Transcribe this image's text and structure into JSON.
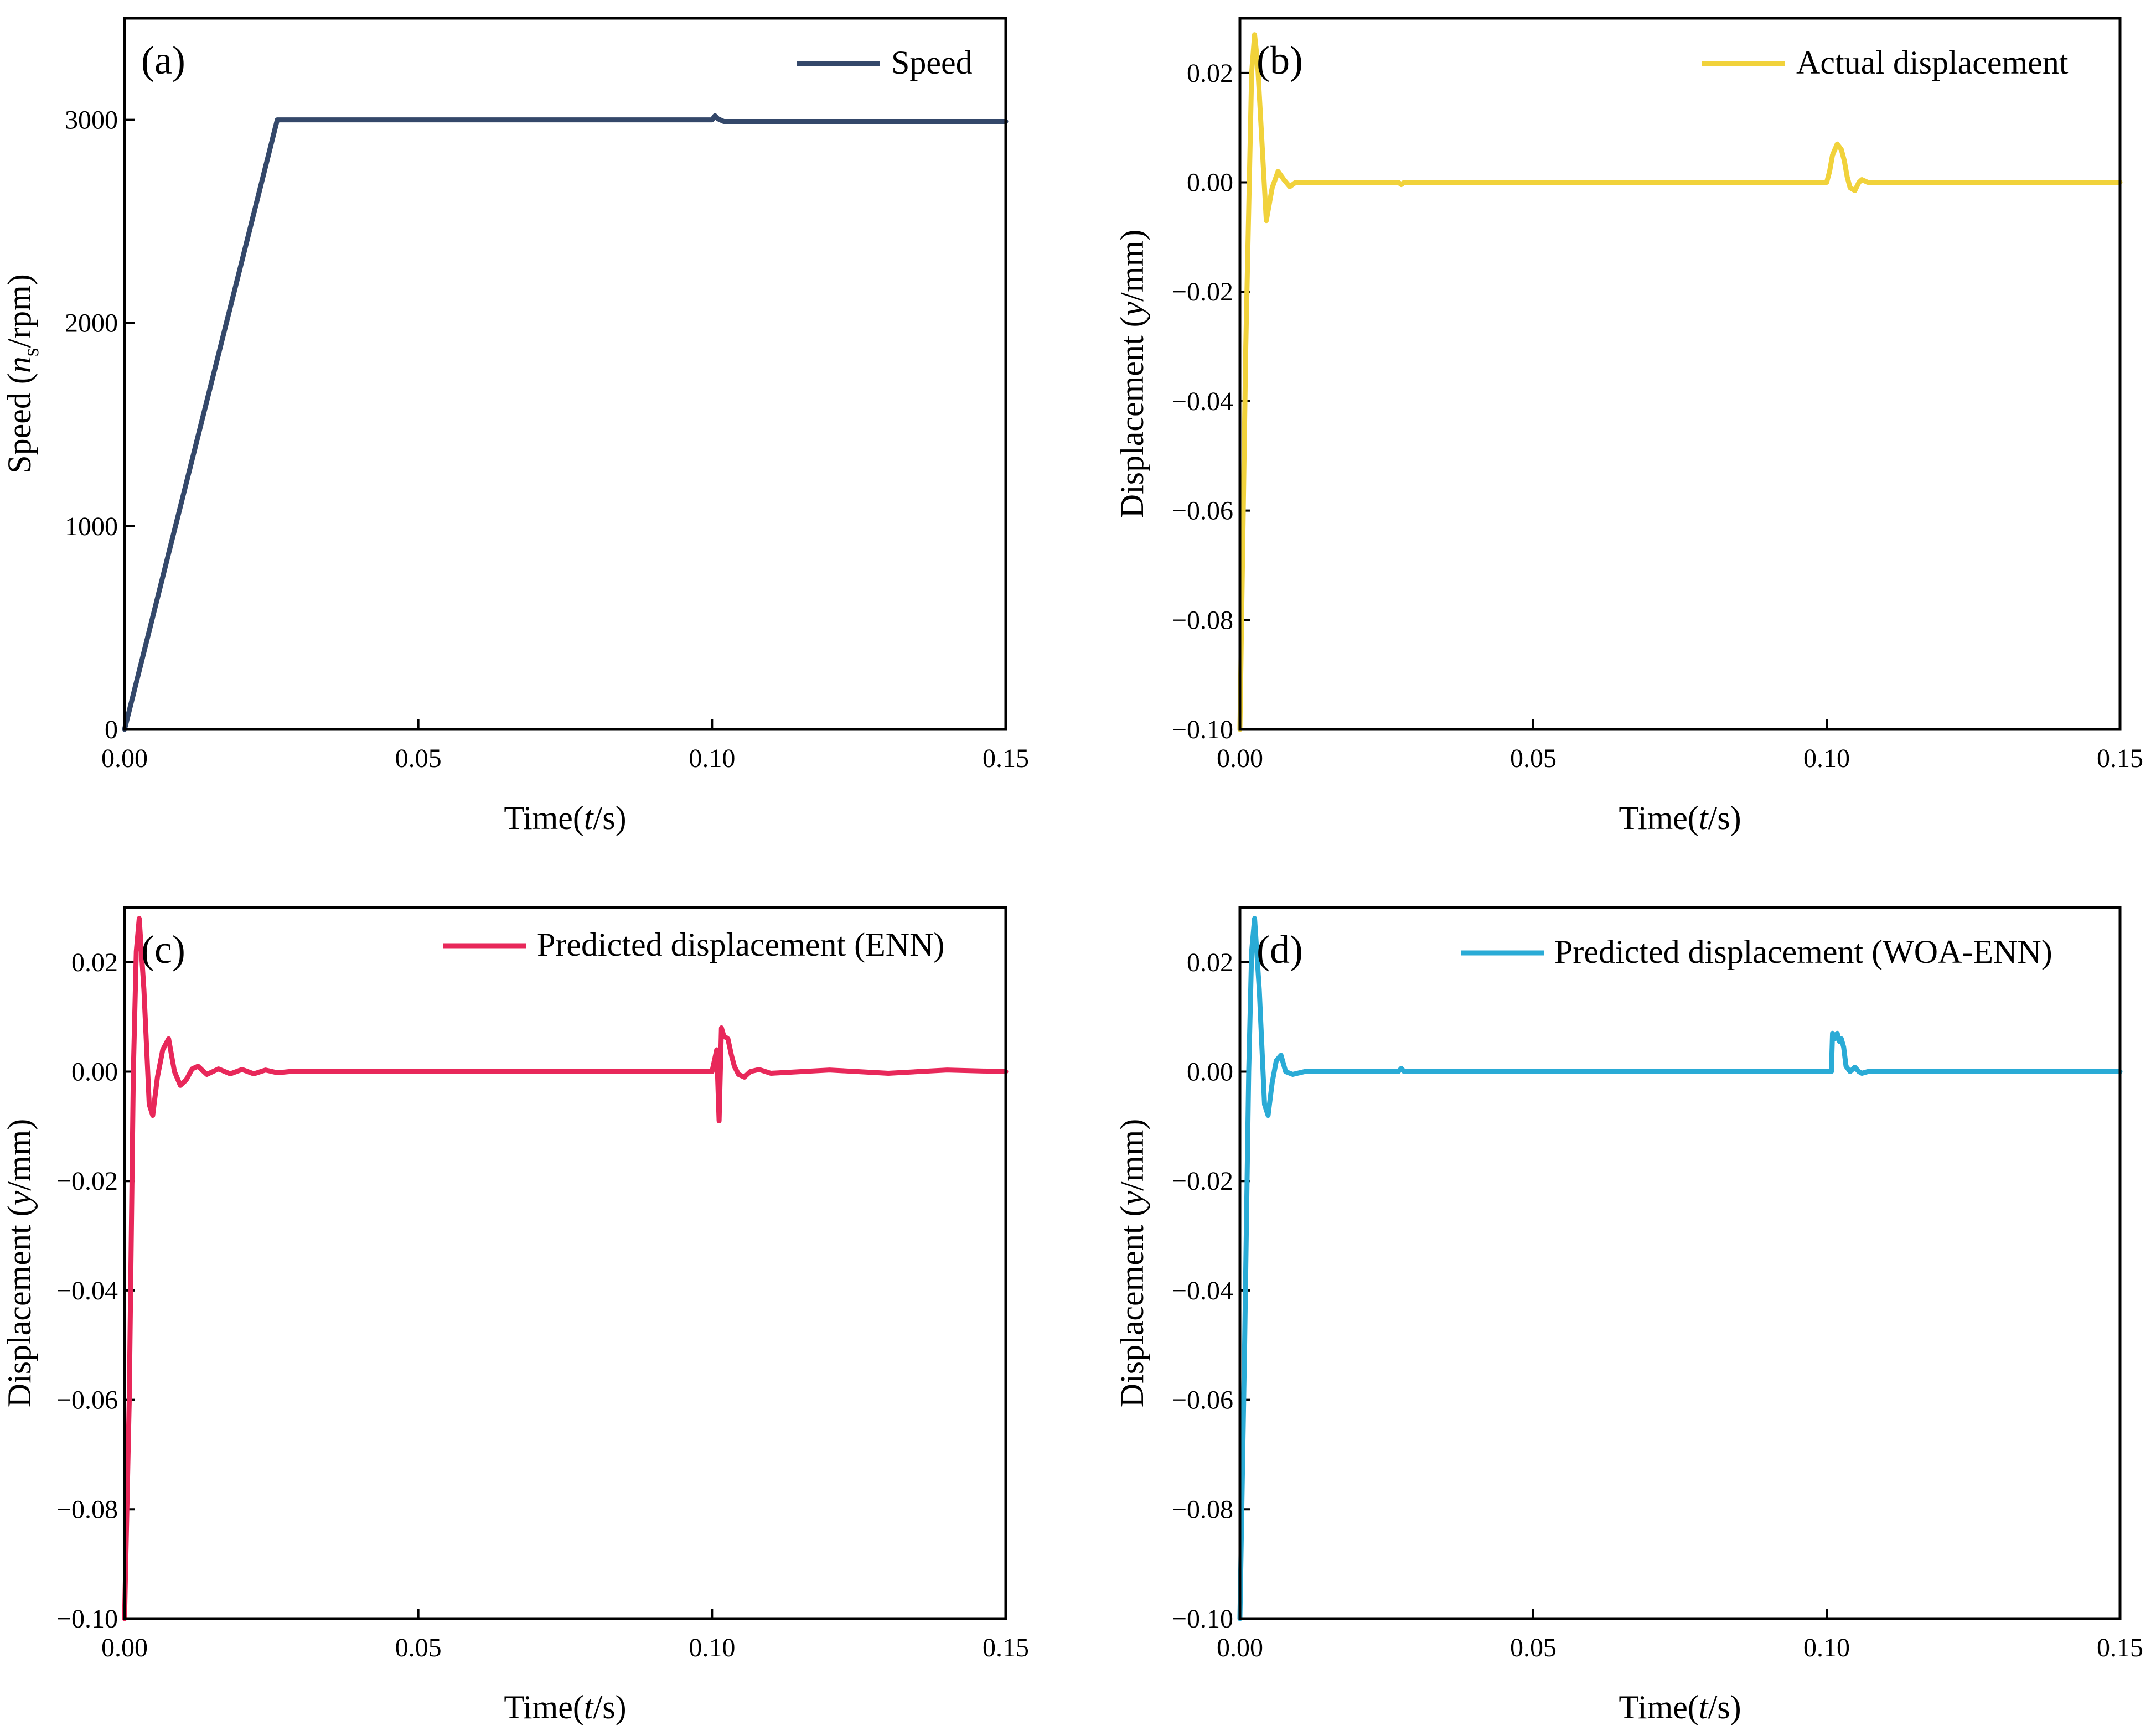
{
  "figure": {
    "panels": [
      "(a)",
      "(b)",
      "(c)",
      "(d)"
    ]
  },
  "chart_data": [
    {
      "id": "a",
      "type": "line",
      "panel_label": "(a)",
      "xlabel": "Time(t/s)",
      "xlabel_parts": [
        "Time(",
        "t",
        "/s)"
      ],
      "ylabel": "Speed (n_s/rpm)",
      "ylabel_parts": [
        "Speed (",
        "n",
        "s",
        "/rpm)"
      ],
      "xlim": [
        0,
        0.15
      ],
      "ylim": [
        0,
        3500
      ],
      "xticks": [
        0,
        0.05,
        0.1,
        0.15
      ],
      "xtick_labels": [
        "0.00",
        "0.05",
        "0.10",
        "0.15"
      ],
      "yticks": [
        0,
        1000,
        2000,
        3000
      ],
      "ytick_labels": [
        "0",
        "1000",
        "2000",
        "3000"
      ],
      "legend": "top-right",
      "series": [
        {
          "name": "Speed",
          "color": "#34486a",
          "x": [
            0,
            0.026,
            0.05,
            0.099,
            0.1,
            0.1005,
            0.101,
            0.102,
            0.15
          ],
          "y": [
            0,
            3000,
            3000,
            3000,
            3000,
            3020,
            3005,
            2992,
            2992
          ]
        }
      ]
    },
    {
      "id": "b",
      "type": "line",
      "panel_label": "(b)",
      "xlabel": "Time(t/s)",
      "xlabel_parts": [
        "Time(",
        "t",
        "/s)"
      ],
      "ylabel": "Displacement (y/mm)",
      "ylabel_parts": [
        "Displacement (",
        "y",
        "/mm)"
      ],
      "xlim": [
        0,
        0.15
      ],
      "ylim": [
        -0.1,
        0.03
      ],
      "xticks": [
        0,
        0.05,
        0.1,
        0.15
      ],
      "xtick_labels": [
        "0.00",
        "0.05",
        "0.10",
        "0.15"
      ],
      "yticks": [
        -0.1,
        -0.08,
        -0.06,
        -0.04,
        -0.02,
        0.0,
        0.02
      ],
      "ytick_labels": [
        "−0.10",
        "−0.08",
        "−0.06",
        "−0.04",
        "−0.02",
        "0.00",
        "0.02"
      ],
      "legend": "top-right",
      "series": [
        {
          "name": "Actual displacement",
          "color": "#f1d23b",
          "x": [
            0,
            0.001,
            0.002,
            0.0025,
            0.003,
            0.0045,
            0.0055,
            0.0065,
            0.0075,
            0.0085,
            0.0095,
            0.011,
            0.027,
            0.0275,
            0.028,
            0.1,
            0.1005,
            0.101,
            0.1018,
            0.1025,
            0.103,
            0.1035,
            0.104,
            0.1048,
            0.1055,
            0.106,
            0.107,
            0.15
          ],
          "y": [
            -0.1,
            -0.03,
            0.02,
            0.027,
            0.022,
            -0.007,
            -0.001,
            0.002,
            0.0005,
            -0.0008,
            0.0,
            0.0,
            0.0,
            -0.0004,
            0.0,
            0.0,
            0.002,
            0.005,
            0.007,
            0.006,
            0.004,
            0.001,
            -0.001,
            -0.0015,
            0.0,
            0.0005,
            0.0,
            0.0
          ]
        }
      ]
    },
    {
      "id": "c",
      "type": "line",
      "panel_label": "(c)",
      "xlabel": "Time(t/s)",
      "xlabel_parts": [
        "Time(",
        "t",
        "/s)"
      ],
      "ylabel": "Displacement (y/mm)",
      "ylabel_parts": [
        "Displacement (",
        "y",
        "/mm)"
      ],
      "xlim": [
        0,
        0.15
      ],
      "ylim": [
        -0.1,
        0.03
      ],
      "xticks": [
        0,
        0.05,
        0.1,
        0.15
      ],
      "xtick_labels": [
        "0.00",
        "0.05",
        "0.10",
        "0.15"
      ],
      "yticks": [
        -0.1,
        -0.08,
        -0.06,
        -0.04,
        -0.02,
        0.0,
        0.02
      ],
      "ytick_labels": [
        "−0.10",
        "−0.08",
        "−0.06",
        "−0.04",
        "−0.02",
        "0.00",
        "0.02"
      ],
      "legend": "top-right",
      "series": [
        {
          "name": "Predicted displacement (ENN)",
          "color": "#e8285a",
          "x": [
            0,
            0.0008,
            0.0015,
            0.002,
            0.0025,
            0.0033,
            0.0042,
            0.0048,
            0.0056,
            0.0065,
            0.0075,
            0.0085,
            0.0095,
            0.0105,
            0.0115,
            0.0125,
            0.014,
            0.016,
            0.018,
            0.02,
            0.022,
            0.024,
            0.026,
            0.028,
            0.1,
            0.1008,
            0.1012,
            0.1016,
            0.102,
            0.1027,
            0.1033,
            0.1038,
            0.1045,
            0.1055,
            0.1065,
            0.108,
            0.11,
            0.12,
            0.13,
            0.14,
            0.15
          ],
          "y": [
            -0.1,
            -0.06,
            0.0,
            0.022,
            0.028,
            0.015,
            -0.006,
            -0.008,
            -0.001,
            0.004,
            0.006,
            0.0,
            -0.0025,
            -0.0015,
            0.0005,
            0.001,
            -0.0005,
            0.0005,
            -0.0004,
            0.0004,
            -0.0004,
            0.0003,
            -0.0002,
            0.0,
            0.0,
            0.004,
            -0.009,
            0.008,
            0.0065,
            0.006,
            0.003,
            0.001,
            -0.0005,
            -0.001,
            0.0,
            0.0004,
            -0.0003,
            0.0003,
            -0.0003,
            0.0003,
            0.0
          ]
        }
      ]
    },
    {
      "id": "d",
      "type": "line",
      "panel_label": "(d)",
      "xlabel": "Time(t/s)",
      "xlabel_parts": [
        "Time(",
        "t",
        "/s)"
      ],
      "ylabel": "Displacement (y/mm)",
      "ylabel_parts": [
        "Displacement (",
        "y",
        "/mm)"
      ],
      "xlim": [
        0,
        0.15
      ],
      "ylim": [
        -0.1,
        0.03
      ],
      "xticks": [
        0,
        0.05,
        0.1,
        0.15
      ],
      "xtick_labels": [
        "0.00",
        "0.05",
        "0.10",
        "0.15"
      ],
      "yticks": [
        -0.1,
        -0.08,
        -0.06,
        -0.04,
        -0.02,
        0.0,
        0.02
      ],
      "ytick_labels": [
        "−0.10",
        "−0.08",
        "−0.06",
        "−0.04",
        "−0.02",
        "0.00",
        "0.02"
      ],
      "legend": "top-right",
      "series": [
        {
          "name": "Predicted displacement (WOA-ENN)",
          "color": "#2aabd6",
          "x": [
            0,
            0.0008,
            0.0015,
            0.002,
            0.0025,
            0.0033,
            0.0042,
            0.0048,
            0.0055,
            0.0062,
            0.007,
            0.0078,
            0.009,
            0.011,
            0.027,
            0.0275,
            0.028,
            0.1008,
            0.101,
            0.1014,
            0.1018,
            0.1022,
            0.1025,
            0.1029,
            0.1033,
            0.104,
            0.1048,
            0.1055,
            0.106,
            0.107,
            0.15
          ],
          "y": [
            -0.1,
            -0.05,
            0.0,
            0.022,
            0.028,
            0.015,
            -0.006,
            -0.008,
            -0.002,
            0.002,
            0.003,
            0.0,
            -0.0005,
            0.0,
            0.0,
            0.0006,
            0.0,
            0.0,
            0.007,
            0.006,
            0.007,
            0.0055,
            0.006,
            0.0045,
            0.001,
            0.0,
            0.0008,
            0.0,
            -0.0003,
            0.0,
            0.0
          ]
        }
      ]
    }
  ]
}
